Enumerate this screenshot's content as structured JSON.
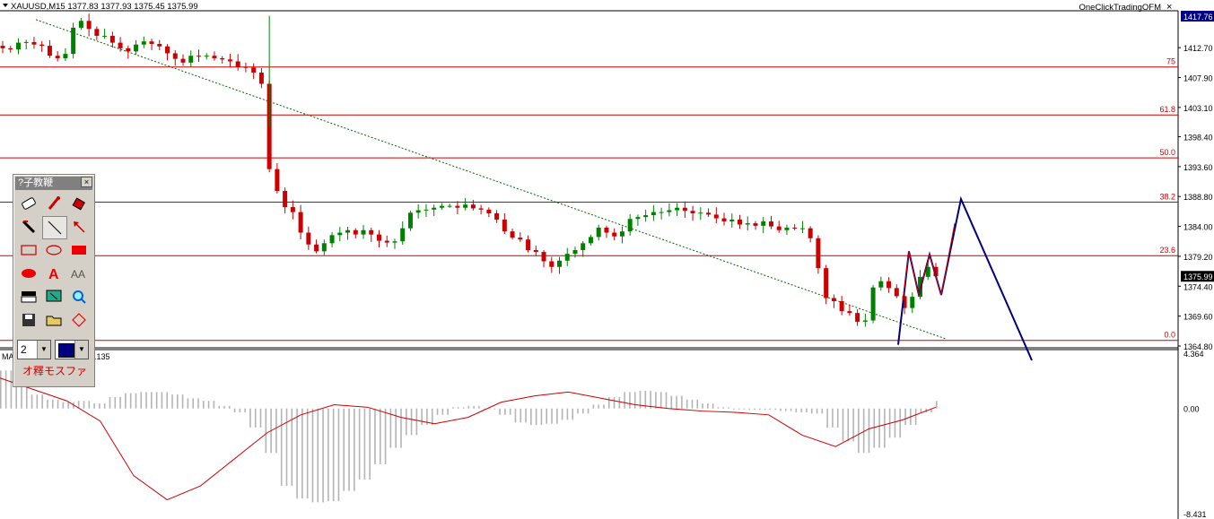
{
  "header": {
    "symbol_line": "XAUUSD,M15  1377.83 1377.93 1375.45 1375.99",
    "broker_label": "OneClickTradingOFM",
    "close_glyph": "×"
  },
  "price_axis": {
    "labels": [
      "1417.76",
      "1412.70",
      "1407.90",
      "1403.10",
      "1398.40",
      "1393.60",
      "1388.80",
      "1384.00",
      "1379.20",
      "1374.40",
      "1369.60",
      "1364.80"
    ],
    "current_price": "1375.99",
    "top_price": "1417.76"
  },
  "fib_levels": [
    {
      "label": "75",
      "price": 1409.6
    },
    {
      "label": "61.8",
      "price": 1401.9
    },
    {
      "label": "50.0",
      "price": 1395.0
    },
    {
      "label": "38.2",
      "price": 1387.9
    },
    {
      "label": "23.6",
      "price": 1379.3
    },
    {
      "label": "0.0",
      "price": 1365.7
    }
  ],
  "indicator": {
    "label_left": "MA",
    "label_value": ".135",
    "axis_labels": [
      "4.364",
      "0.00",
      "-8.431"
    ],
    "max": 4.364,
    "min": -8.431
  },
  "toolbox": {
    "title": "?子教鞭",
    "close": "×",
    "line_width_value": "2",
    "footer_text": "オ釋モスファ",
    "tools": [
      "eraser-icon",
      "marker-icon",
      "paint-bucket-icon",
      "pencil-icon",
      "line-icon",
      "arrow-icon",
      "rectangle-icon",
      "ellipse-icon",
      "filled-rectangle-icon",
      "filled-ellipse-icon",
      "text-a-icon",
      "text-aa-icon",
      "screen-icon",
      "screenshot-icon",
      "zoom-icon",
      "save-icon",
      "open-folder-icon",
      "diamond-icon"
    ],
    "selected_color": "#000080"
  },
  "colors": {
    "bull": "#008000",
    "bear": "#cc0000",
    "fib": "#cc0000",
    "trend": "#006400",
    "pattern_blue": "#000080",
    "pattern_red": "#cc0000",
    "macd_hist": "#b4b4b4",
    "signal": "#cc0000",
    "axis_bg": "#ffffff"
  },
  "chart_data": {
    "type": "line",
    "title": "XAUUSD,M15",
    "price_range": [
      1364.8,
      1417.76
    ],
    "close_series": [
      1412.6,
      1412.4,
      1413.5,
      1413.6,
      1413.2,
      1413.0,
      1411.4,
      1411.0,
      1411.7,
      1415.9,
      1417.0,
      1415.7,
      1414.6,
      1414.6,
      1413.5,
      1412.6,
      1412.1,
      1413.2,
      1413.7,
      1413.3,
      1412.9,
      1411.8,
      1410.9,
      1410.3,
      1411.4,
      1411.3,
      1411.4,
      1411.0,
      1410.8,
      1410.5,
      1409.6,
      1409.5,
      1408.7,
      1406.9,
      1393.2,
      1389.7,
      1387.1,
      1386.3,
      1383.0,
      1381.1,
      1380.0,
      1381.3,
      1382.6,
      1383.0,
      1383.4,
      1382.7,
      1383.4,
      1382.7,
      1381.7,
      1381.4,
      1381.6,
      1383.7,
      1386.2,
      1386.6,
      1386.7,
      1387.0,
      1387.3,
      1387.3,
      1387.0,
      1387.5,
      1386.9,
      1386.7,
      1386.1,
      1385.1,
      1383.2,
      1382.2,
      1381.9,
      1380.2,
      1379.9,
      1378.4,
      1377.5,
      1378.5,
      1379.6,
      1380.2,
      1381.3,
      1382.3,
      1383.8,
      1383.0,
      1382.4,
      1383.2,
      1385.2,
      1385.5,
      1385.8,
      1386.3,
      1386.3,
      1386.6,
      1387.0,
      1386.5,
      1386.1,
      1386.2,
      1385.9,
      1385.3,
      1384.8,
      1385.1,
      1384.3,
      1384.5,
      1384.1,
      1384.8,
      1384.0,
      1383.4,
      1383.8,
      1383.7,
      1383.7,
      1382.1,
      1377.3,
      1372.5,
      1372.0,
      1370.4,
      1370.1,
      1368.7,
      1368.9,
      1374.2,
      1375.2,
      1374.1,
      1372.8,
      1370.9,
      1372.7,
      1375.9,
      1377.5,
      1376.0
    ],
    "macd_hist": [
      3.0,
      2.1,
      1.1,
      0.7,
      0.5,
      0.6,
      0.4,
      0.9,
      1.2,
      1.3,
      1.3,
      1.1,
      0.8,
      0.6,
      0.2,
      -0.3,
      -1.5,
      -3.5,
      -6.1,
      -7.1,
      -7.4,
      -7.3,
      -6.5,
      -5.6,
      -4.4,
      -3.1,
      -2.1,
      -1.3,
      -0.5,
      0.1,
      0.2,
      0.0,
      -0.5,
      -1.1,
      -1.3,
      -1.2,
      -0.9,
      -0.4,
      0.3,
      0.9,
      1.3,
      1.4,
      1.3,
      1.0,
      0.7,
      0.4,
      0.1,
      0.0,
      -0.1,
      -0.1,
      -0.2,
      -0.3,
      -0.4,
      -1.5,
      -2.6,
      -3.5,
      -3.1,
      -2.3,
      -1.3,
      -0.3,
      0.6
    ],
    "macd_signal": [
      2.4,
      1.5,
      0.6,
      -1.0,
      -5.3,
      -7.2,
      -6.1,
      -4.0,
      -1.9,
      -0.5,
      0.3,
      0.1,
      -0.7,
      -1.2,
      -0.7,
      0.5,
      1.0,
      1.3,
      0.8,
      0.3,
      0.0,
      -0.2,
      -0.3,
      -0.5,
      -2.1,
      -3.0,
      -1.6,
      -0.9,
      0.1
    ],
    "fib_levels": {
      "75": 1409.6,
      "61.8": 1401.9,
      "50.0": 1395.0,
      "38.2": 1387.9,
      "23.6": 1379.3,
      "0.0": 1365.7
    }
  }
}
